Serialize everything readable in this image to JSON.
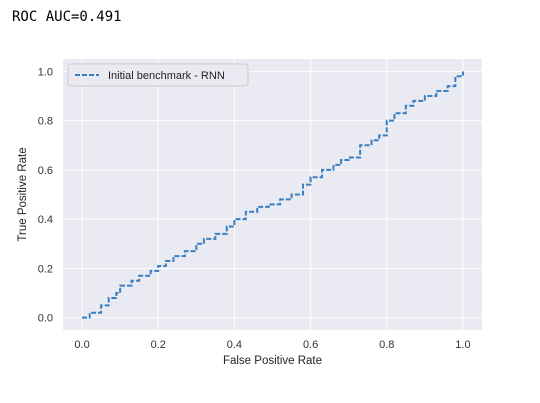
{
  "output": {
    "text": "ROC AUC=0.491"
  },
  "chart_data": {
    "type": "line",
    "xlabel": "False Positive Rate",
    "ylabel": "True Positive Rate",
    "xlim": [
      -0.05,
      1.05
    ],
    "ylim": [
      -0.05,
      1.05
    ],
    "xticks": [
      "0.0",
      "0.2",
      "0.4",
      "0.6",
      "0.8",
      "1.0"
    ],
    "yticks": [
      "0.0",
      "0.2",
      "0.4",
      "0.6",
      "0.8",
      "1.0"
    ],
    "grid": true,
    "legend_position": "top-left",
    "background": "#eaeaf2",
    "series": [
      {
        "name": "Initial benchmark - RNN",
        "color": "#3a7fc1",
        "linestyle": "dashed",
        "x": [
          0.0,
          0.02,
          0.05,
          0.07,
          0.09,
          0.1,
          0.13,
          0.15,
          0.18,
          0.2,
          0.22,
          0.24,
          0.27,
          0.3,
          0.32,
          0.35,
          0.38,
          0.4,
          0.43,
          0.46,
          0.49,
          0.52,
          0.55,
          0.58,
          0.6,
          0.63,
          0.66,
          0.68,
          0.7,
          0.73,
          0.76,
          0.78,
          0.8,
          0.82,
          0.85,
          0.87,
          0.9,
          0.93,
          0.96,
          0.98,
          1.0
        ],
        "y": [
          0.0,
          0.02,
          0.05,
          0.08,
          0.1,
          0.13,
          0.15,
          0.17,
          0.19,
          0.21,
          0.23,
          0.25,
          0.27,
          0.3,
          0.32,
          0.34,
          0.37,
          0.4,
          0.43,
          0.45,
          0.46,
          0.48,
          0.5,
          0.54,
          0.57,
          0.6,
          0.62,
          0.64,
          0.65,
          0.7,
          0.72,
          0.74,
          0.8,
          0.83,
          0.86,
          0.88,
          0.9,
          0.92,
          0.94,
          0.98,
          1.0
        ]
      }
    ]
  }
}
